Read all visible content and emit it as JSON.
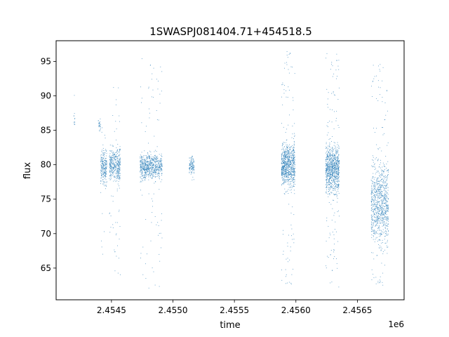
{
  "chart_data": {
    "type": "scatter",
    "title": "1SWASPJ081404.71+454518.5",
    "xlabel": "time",
    "ylabel": "flux",
    "x_offset_label": "1e6",
    "x_scale": 1000000,
    "xlim": [
      2.45405,
      2.45688
    ],
    "ylim": [
      60.4,
      98.0
    ],
    "x_ticks": [
      2.4545,
      2.455,
      2.4555,
      2.456,
      2.4565
    ],
    "x_tick_labels": [
      "2.4545",
      "2.4550",
      "2.4555",
      "2.4560",
      "2.4565"
    ],
    "y_ticks": [
      65,
      70,
      75,
      80,
      85,
      90,
      95
    ],
    "y_tick_labels": [
      "65",
      "70",
      "75",
      "80",
      "85",
      "90",
      "95"
    ],
    "grid": false,
    "marker_color": "#1f77b4",
    "series": [
      {
        "clusters": [
          {
            "x_start": 2.45419,
            "x_end": 2.4542,
            "y_center": 86.5,
            "y_spread": 0.6,
            "y_min": 85.9,
            "y_max": 92.0,
            "count": 12
          },
          {
            "x_start": 2.45439,
            "x_end": 2.45441,
            "y_center": 85.8,
            "y_spread": 0.7,
            "y_min": 84.5,
            "y_max": 88.2,
            "count": 25
          },
          {
            "x_start": 2.45441,
            "x_end": 2.45446,
            "y_center": 79.8,
            "y_spread": 1.1,
            "y_min": 67.0,
            "y_max": 86.0,
            "count": 230
          },
          {
            "x_start": 2.45448,
            "x_end": 2.45457,
            "y_center": 80.0,
            "y_spread": 1.2,
            "y_min": 64.0,
            "y_max": 92.0,
            "count": 420
          },
          {
            "x_start": 2.45473,
            "x_end": 2.45491,
            "y_center": 79.8,
            "y_spread": 0.9,
            "y_min": 62.0,
            "y_max": 95.5,
            "count": 700
          },
          {
            "x_start": 2.45513,
            "x_end": 2.45517,
            "y_center": 80.0,
            "y_spread": 0.6,
            "y_min": 77.8,
            "y_max": 81.6,
            "count": 110
          },
          {
            "x_start": 2.45588,
            "x_end": 2.45599,
            "y_center": 80.0,
            "y_spread": 1.6,
            "y_min": 62.3,
            "y_max": 96.5,
            "count": 850
          },
          {
            "x_start": 2.45624,
            "x_end": 2.45635,
            "y_center": 79.5,
            "y_spread": 1.7,
            "y_min": 62.2,
            "y_max": 96.2,
            "count": 900
          },
          {
            "x_start": 2.45661,
            "x_end": 2.45675,
            "y_center": 74.5,
            "y_spread": 2.8,
            "y_min": 62.0,
            "y_max": 95.0,
            "count": 900
          }
        ]
      }
    ]
  }
}
